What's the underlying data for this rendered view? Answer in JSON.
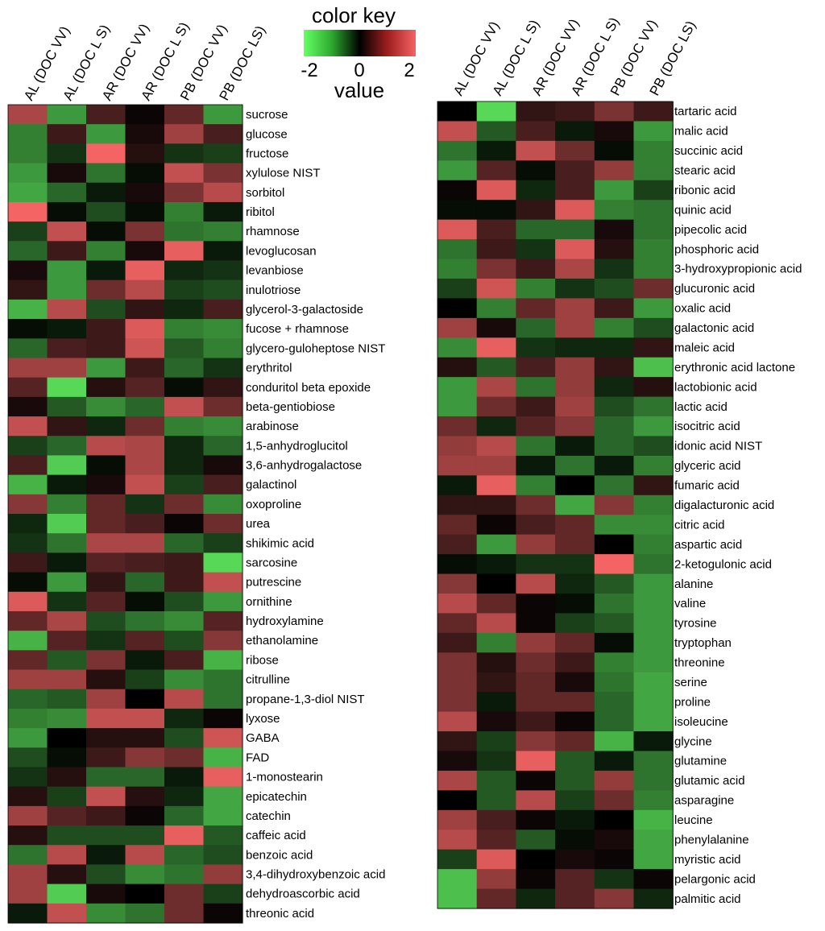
{
  "chart_data": {
    "type": "heatmap",
    "color_key": {
      "title": "color key",
      "label": "value",
      "ticks": [
        "-2",
        "0",
        "2"
      ],
      "range": [
        -2,
        2
      ],
      "colors": {
        "low": "#66ff66",
        "mid": "#000000",
        "high": "#f46464"
      }
    },
    "columns": [
      "AL (DOC VV)",
      "AL (DOC L S)",
      "AR (DOC VV)",
      "AR (DOC L S)",
      "PB (DOC VV)",
      "PB (DOC LS)"
    ],
    "heatmaps": [
      {
        "rows": [
          "sucrose",
          "glucose",
          "fructose",
          "xylulose NIST",
          "sorbitol",
          "ribitol",
          "rhamnose",
          "levoglucosan",
          "levanbiose",
          "inulotriose",
          "glycerol-3-galactoside",
          "fucose + rhamnose",
          "glycero-guloheptose NIST",
          "erythritol",
          "conduritol beta epoxide",
          "beta-gentiobiose",
          "arabinose",
          "1,5-anhydroglucitol",
          "3,6-anhydrogalactose",
          "galactinol",
          "oxoproline",
          "urea",
          "shikimic acid",
          "sarcosine",
          "putrescine",
          "ornithine",
          "hydroxylamine",
          "ethanolamine",
          "ribose",
          "citrulline",
          "propane-1,3-diol NIST",
          "lyxose",
          "GABA",
          "FAD",
          "1-monostearin",
          "epicatechin",
          "catechin",
          "caffeic acid",
          "benzoic acid",
          "3,4-dihydroxybenzoic acid",
          "dehydroascorbic acid",
          "threonic acid"
        ],
        "values": [
          [
            1.4,
            -1.2,
            0.6,
            0.1,
            0.8,
            -1.2
          ],
          [
            -1.0,
            0.5,
            -1.2,
            0.2,
            1.3,
            0.6
          ],
          [
            -1.0,
            -0.4,
            2.0,
            0.3,
            -0.4,
            -0.5
          ],
          [
            -1.2,
            0.2,
            -0.9,
            -0.1,
            1.6,
            1.0
          ],
          [
            -1.3,
            -0.8,
            -0.2,
            0.2,
            1.0,
            1.5
          ],
          [
            2.0,
            -0.1,
            -0.6,
            -0.1,
            -1.0,
            -0.2
          ],
          [
            -0.5,
            1.6,
            -0.1,
            1.0,
            -0.9,
            -1.0
          ],
          [
            -0.8,
            0.5,
            -1.0,
            0.2,
            1.9,
            -0.2
          ],
          [
            0.2,
            -1.2,
            -0.2,
            1.9,
            -0.3,
            -0.4
          ],
          [
            0.4,
            -1.2,
            0.9,
            1.5,
            -0.5,
            -0.6
          ],
          [
            -1.4,
            1.5,
            -0.6,
            0.4,
            -0.3,
            0.6
          ],
          [
            -0.1,
            -0.2,
            0.5,
            1.8,
            -1.0,
            -1.1
          ],
          [
            -0.8,
            0.6,
            0.5,
            1.7,
            -0.7,
            -1.0
          ],
          [
            1.3,
            1.3,
            -1.2,
            0.5,
            -0.8,
            -0.4
          ],
          [
            0.7,
            -1.7,
            0.3,
            0.7,
            -0.1,
            0.4
          ],
          [
            0.2,
            -0.7,
            -1.1,
            -0.8,
            1.6,
            0.9
          ],
          [
            1.6,
            0.4,
            -0.3,
            0.9,
            -1.0,
            -1.1
          ],
          [
            -0.5,
            -0.8,
            1.5,
            1.4,
            -0.3,
            -0.8
          ],
          [
            0.6,
            -1.6,
            -0.1,
            1.4,
            -0.3,
            0.2
          ],
          [
            -1.4,
            -0.2,
            0.2,
            1.6,
            -0.5,
            0.6
          ],
          [
            1.1,
            -1.0,
            0.8,
            -0.4,
            0.9,
            -1.1
          ],
          [
            -0.3,
            -1.6,
            0.8,
            0.6,
            0.1,
            0.9
          ],
          [
            -0.4,
            -0.9,
            1.4,
            1.4,
            -0.8,
            -0.5
          ],
          [
            0.5,
            -0.2,
            0.7,
            0.6,
            0.5,
            -1.7
          ],
          [
            -0.1,
            -1.2,
            0.4,
            -0.8,
            0.5,
            1.6
          ],
          [
            1.8,
            -0.4,
            0.7,
            -0.1,
            -0.6,
            -1.2
          ],
          [
            0.8,
            1.4,
            -0.6,
            -0.9,
            -1.1,
            0.7
          ],
          [
            -1.4,
            0.7,
            -0.4,
            0.7,
            -0.6,
            1.1
          ],
          [
            0.8,
            -0.7,
            1.0,
            -0.2,
            0.6,
            -1.4
          ],
          [
            1.3,
            1.3,
            0.3,
            -0.5,
            -1.1,
            -0.9
          ],
          [
            -0.8,
            -0.7,
            1.3,
            0.0,
            1.5,
            -0.9
          ],
          [
            -1.0,
            -1.1,
            1.6,
            1.6,
            -0.3,
            0.1
          ],
          [
            -1.2,
            0.0,
            0.3,
            0.3,
            -0.6,
            1.7
          ],
          [
            -0.6,
            -0.1,
            0.5,
            1.1,
            0.9,
            -1.4
          ],
          [
            -0.4,
            0.3,
            -0.8,
            -0.8,
            -0.2,
            1.9
          ],
          [
            0.3,
            -0.5,
            1.6,
            0.3,
            -0.3,
            -1.3
          ],
          [
            1.3,
            0.7,
            0.5,
            0.1,
            -0.8,
            -1.3
          ],
          [
            0.3,
            -0.6,
            -0.6,
            -0.6,
            1.9,
            -0.7
          ],
          [
            -0.9,
            1.5,
            -0.2,
            1.5,
            -0.8,
            -0.6
          ],
          [
            1.3,
            0.3,
            -0.6,
            -1.1,
            -0.9,
            1.2
          ],
          [
            1.3,
            -1.6,
            0.2,
            0.0,
            0.9,
            -0.5
          ],
          [
            -0.2,
            1.6,
            -1.1,
            -0.9,
            0.9,
            0.1
          ]
        ]
      },
      {
        "rows": [
          "tartaric acid",
          "malic acid",
          "succinic acid",
          "stearic acid",
          "ribonic acid",
          "quinic acid",
          "pipecolic acid",
          "phosphoric acid",
          "3-hydroxypropionic acid",
          "glucuronic acid",
          "oxalic acid",
          "galactonic acid",
          "maleic acid",
          "erythronic acid lactone",
          "lactobionic acid",
          "lactic acid",
          "isocitric acid",
          "idonic acid NIST",
          "glyceric acid",
          "fumaric acid",
          "digalacturonic acid",
          "citric acid",
          "aspartic acid",
          "2-ketogulonic acid",
          "alanine",
          "valine",
          "tyrosine",
          "tryptophan",
          "threonine",
          "serine",
          "proline",
          "isoleucine",
          "glycine",
          "glutamine",
          "glutamic acid",
          "asparagine",
          "leucine",
          "phenylalanine",
          "myristic acid",
          "pelargonic acid",
          "palmitic acid"
        ],
        "values": [
          [
            0.0,
            -1.7,
            0.4,
            0.5,
            1.0,
            0.5
          ],
          [
            1.6,
            -0.7,
            0.6,
            -0.2,
            0.2,
            -1.2
          ],
          [
            -0.9,
            -0.2,
            1.6,
            0.9,
            -0.1,
            -1.0
          ],
          [
            -1.2,
            0.7,
            -0.1,
            0.6,
            1.2,
            -1.0
          ],
          [
            0.1,
            1.8,
            -0.3,
            0.6,
            -1.2,
            -0.5
          ],
          [
            -0.1,
            -0.1,
            0.4,
            1.8,
            -1.0,
            -0.9
          ],
          [
            1.8,
            0.6,
            -0.8,
            -0.8,
            0.2,
            -0.9
          ],
          [
            -0.9,
            0.5,
            -0.4,
            1.8,
            0.3,
            -1.0
          ],
          [
            -1.0,
            1.0,
            0.5,
            1.4,
            -0.4,
            -1.0
          ],
          [
            -0.5,
            1.7,
            -1.0,
            -0.4,
            -0.6,
            0.9
          ],
          [
            0.0,
            -1.0,
            0.8,
            1.3,
            0.5,
            -1.2
          ],
          [
            1.3,
            0.2,
            -0.8,
            1.3,
            -1.0,
            -0.6
          ],
          [
            -1.1,
            1.9,
            -0.4,
            -0.3,
            -0.3,
            0.4
          ],
          [
            0.3,
            -0.7,
            0.6,
            1.2,
            0.4,
            -1.5
          ],
          [
            -1.2,
            1.4,
            -0.9,
            1.2,
            -0.3,
            0.3
          ],
          [
            -1.2,
            0.9,
            0.5,
            1.3,
            -0.6,
            -0.9
          ],
          [
            0.9,
            -0.3,
            0.7,
            1.1,
            -0.8,
            -1.2
          ],
          [
            1.2,
            1.5,
            -0.9,
            -0.2,
            -0.8,
            -0.6
          ],
          [
            1.3,
            1.3,
            -0.2,
            -0.9,
            -0.2,
            -1.0
          ],
          [
            -0.2,
            1.9,
            -1.0,
            0.0,
            -0.9,
            0.4
          ],
          [
            0.4,
            0.4,
            0.9,
            -1.3,
            1.1,
            -1.0
          ],
          [
            0.8,
            0.1,
            0.6,
            0.8,
            -1.1,
            -1.1
          ],
          [
            0.6,
            -1.2,
            1.2,
            0.8,
            0.0,
            -1.0
          ],
          [
            -0.1,
            -0.2,
            -0.4,
            -0.4,
            2.0,
            -0.9
          ],
          [
            1.1,
            0.0,
            1.5,
            -0.3,
            -0.7,
            -1.2
          ],
          [
            1.5,
            0.8,
            0.1,
            -0.1,
            -0.9,
            -1.2
          ],
          [
            0.8,
            1.5,
            0.1,
            -0.5,
            -0.7,
            -1.2
          ],
          [
            0.5,
            -1.0,
            1.2,
            0.8,
            -0.1,
            -1.2
          ],
          [
            1.0,
            0.3,
            0.9,
            0.5,
            -1.0,
            -1.2
          ],
          [
            1.0,
            0.4,
            0.8,
            0.2,
            -0.9,
            -1.3
          ],
          [
            1.0,
            -0.2,
            0.8,
            0.8,
            -0.8,
            -1.3
          ],
          [
            1.5,
            0.2,
            0.5,
            0.1,
            -0.8,
            -1.3
          ],
          [
            0.4,
            -0.5,
            1.1,
            0.8,
            -1.4,
            -0.2
          ],
          [
            0.2,
            -0.4,
            1.9,
            -0.7,
            -0.2,
            -0.9
          ],
          [
            1.4,
            -0.7,
            0.1,
            -0.7,
            1.2,
            -0.9
          ],
          [
            0.0,
            -0.7,
            1.5,
            -0.5,
            0.9,
            -1.0
          ],
          [
            1.3,
            0.6,
            0.1,
            -0.2,
            0.0,
            -1.4
          ],
          [
            1.5,
            0.7,
            -0.7,
            -0.1,
            0.2,
            -1.3
          ],
          [
            -0.5,
            1.8,
            0.0,
            0.2,
            0.1,
            -1.3
          ],
          [
            -1.5,
            1.2,
            0.1,
            0.7,
            -0.4,
            0.1
          ],
          [
            -1.5,
            0.8,
            -0.3,
            0.7,
            1.1,
            -0.3
          ]
        ]
      }
    ]
  }
}
